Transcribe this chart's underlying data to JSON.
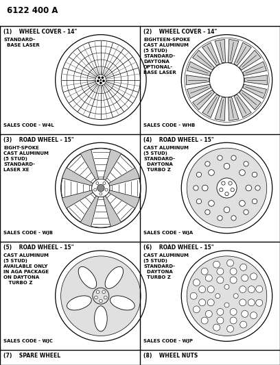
{
  "title": "6122 400 A",
  "bg_color": "#ffffff",
  "text_color": "#000000",
  "cells": [
    {
      "id": 1,
      "row": 0,
      "col": 0,
      "header": "(1)    WHEEL COVER - 14\"",
      "desc": "STANDARD-\n  BASE LASER",
      "sales": "SALES CODE - W4L",
      "wheel_type": "spoke_cover"
    },
    {
      "id": 2,
      "row": 0,
      "col": 1,
      "header": "(2)    WHEEL COVER - 14\"",
      "desc": "EIGHTEEN-SPOKE\nCAST ALUMINUM\n(5 STUD)\nSTANDARD-\nDAYTONA\nOPTIONAL-\nBASE LASER",
      "sales": "SALES CODE - WHB",
      "wheel_type": "eighteen_spoke"
    },
    {
      "id": 3,
      "row": 1,
      "col": 0,
      "header": "(3)    ROAD WHEEL - 15\"",
      "desc": "EIGHT-SPOKE\nCAST ALUMINUM\n(5 STUD)\nSTANDARD-\nLASER XE",
      "sales": "SALES CODE - WJB",
      "wheel_type": "eight_spoke"
    },
    {
      "id": 4,
      "row": 1,
      "col": 1,
      "header": "(4)    ROAD WHEEL - 15\"",
      "desc": "CAST ALUMINUM\n(5 STUD)\nSTANDARD-\n  DAYTONA\n  TURBO Z",
      "sales": "SALES CODE - WJA",
      "wheel_type": "round_holes_small"
    },
    {
      "id": 5,
      "row": 2,
      "col": 0,
      "header": "(5)    ROAD WHEEL - 15\"",
      "desc": "CAST ALUMINUM\n(5 STUD)\nAVAILABLE ONLY\nIN AGA PACKAGE\nON DAYTONA\n   TURBO Z",
      "sales": "SALES CODE - WJC",
      "wheel_type": "petal_spoke"
    },
    {
      "id": 6,
      "row": 2,
      "col": 1,
      "header": "(6)    ROAD WHEEL - 15\"",
      "desc": "CAST ALUMINUM\n(5 STUD)\nSTANDARD-\n  DAYTONA\n  TURBO Z",
      "sales": "SALES CODE - WJP",
      "wheel_type": "round_holes_large"
    }
  ],
  "bottom_cells": [
    {
      "id": 7,
      "col": 0,
      "label": "(7)    SPARE WHEEL"
    },
    {
      "id": 8,
      "col": 1,
      "label": "(8)    WHEEL NUTS"
    }
  ]
}
